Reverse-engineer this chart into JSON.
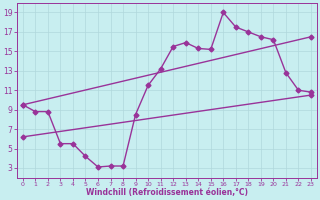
{
  "xlabel": "Windchill (Refroidissement éolien,°C)",
  "bg_color": "#c8eef0",
  "grid_color": "#b0d8dc",
  "line_color": "#993399",
  "xlim": [
    -0.5,
    23.5
  ],
  "ylim": [
    2,
    20
  ],
  "yticks": [
    3,
    5,
    7,
    9,
    11,
    13,
    15,
    17,
    19
  ],
  "xticks": [
    0,
    1,
    2,
    3,
    4,
    5,
    6,
    7,
    8,
    9,
    10,
    11,
    12,
    13,
    14,
    15,
    16,
    17,
    18,
    19,
    20,
    21,
    22,
    23
  ],
  "line1_x": [
    0,
    1,
    2,
    3,
    4,
    5,
    6,
    7,
    8,
    9,
    10,
    11,
    12,
    13,
    14,
    15,
    16,
    17,
    18,
    19,
    20,
    21,
    22,
    23
  ],
  "line1_y": [
    9.5,
    8.8,
    8.8,
    5.5,
    5.5,
    4.2,
    3.1,
    3.2,
    3.2,
    8.5,
    11.5,
    13.2,
    15.5,
    15.9,
    15.3,
    15.2,
    19.0,
    17.5,
    17.0,
    16.5,
    16.2,
    12.8,
    11.0,
    10.8
  ],
  "line2_x": [
    0,
    23
  ],
  "line2_y": [
    6.2,
    10.5
  ],
  "line3_x": [
    0,
    23
  ],
  "line3_y": [
    9.5,
    16.5
  ],
  "marker": "D",
  "markersize": 2.5,
  "linewidth": 1.0
}
